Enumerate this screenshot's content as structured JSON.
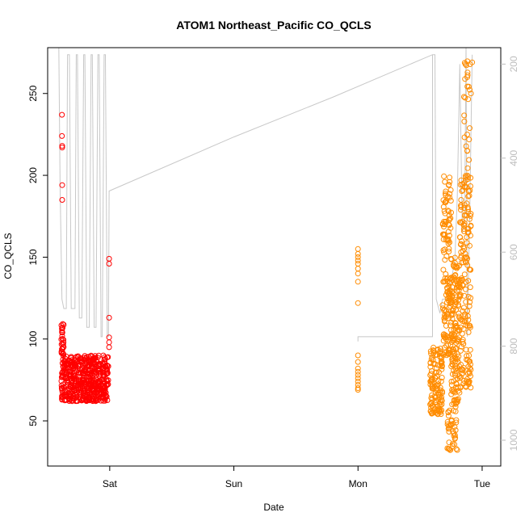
{
  "chart_data": {
    "type": "scatter",
    "title": "ATOM1 Northeast_Pacific CO_QCLS",
    "xlabel": "Date",
    "ylabel": "CO_QCLS",
    "x_ticks": [
      "Sat",
      "Sun",
      "Mon",
      "Tue"
    ],
    "x_tick_values": [
      0,
      1,
      2,
      3
    ],
    "xlim": [
      -0.5,
      3.15
    ],
    "ylim": [
      22.4,
      278
    ],
    "y_ticks": [
      50,
      100,
      150,
      200,
      250
    ],
    "y2_ticks": [
      200,
      400,
      600,
      800,
      1000
    ],
    "y2lim": [
      1055,
      165
    ],
    "y2_reversed": true,
    "colors": {
      "series1": "#ff0000",
      "series2": "#ff8c00",
      "pressure_line": "#c8c8c8",
      "axis": "#000000",
      "right_axis": "#bdbdbd"
    },
    "series": [
      {
        "color": "#ff0000",
        "clusters": [
          {
            "x0": -0.39,
            "x1": -0.01,
            "ylo": 62,
            "yhi": 90,
            "n": 520
          },
          {
            "x0": -0.39,
            "x1": -0.37,
            "ylo": 90,
            "yhi": 110,
            "n": 28
          }
        ],
        "points": [
          [
            -0.385,
            237
          ],
          [
            -0.385,
            224
          ],
          [
            -0.383,
            218
          ],
          [
            -0.383,
            217
          ],
          [
            -0.383,
            194
          ],
          [
            -0.383,
            185
          ],
          [
            -0.005,
            149
          ],
          [
            -0.005,
            146
          ],
          [
            -0.005,
            113
          ],
          [
            -0.005,
            101
          ],
          [
            -0.005,
            98
          ],
          [
            -0.005,
            95
          ]
        ]
      },
      {
        "color": "#ff8c00",
        "clusters": [
          {
            "x0": 2.58,
            "x1": 2.68,
            "ylo": 54,
            "yhi": 95,
            "n": 130
          },
          {
            "x0": 2.68,
            "x1": 2.75,
            "ylo": 90,
            "yhi": 200,
            "n": 140
          },
          {
            "x0": 2.75,
            "x1": 2.82,
            "ylo": 60,
            "yhi": 150,
            "n": 150
          },
          {
            "x0": 2.72,
            "x1": 2.8,
            "ylo": 30,
            "yhi": 60,
            "n": 40
          },
          {
            "x0": 2.82,
            "x1": 2.91,
            "ylo": 70,
            "yhi": 200,
            "n": 170
          },
          {
            "x0": 2.85,
            "x1": 2.91,
            "ylo": 200,
            "yhi": 270,
            "n": 25
          }
        ],
        "points": [
          [
            2.0,
            155
          ],
          [
            2.0,
            152
          ],
          [
            2.0,
            150
          ],
          [
            2.0,
            148
          ],
          [
            2.0,
            146
          ],
          [
            2.0,
            143
          ],
          [
            2.0,
            140
          ],
          [
            2.0,
            135
          ],
          [
            2.0,
            122
          ],
          [
            2.0,
            90
          ],
          [
            2.0,
            86
          ],
          [
            2.0,
            82
          ],
          [
            2.0,
            80
          ],
          [
            2.0,
            78
          ],
          [
            2.0,
            76
          ],
          [
            2.0,
            74
          ],
          [
            2.0,
            72
          ],
          [
            2.0,
            70
          ],
          [
            2.0,
            69
          ],
          [
            2.88,
            260
          ],
          [
            2.92,
            269
          ],
          [
            2.91,
            250
          ]
        ]
      }
    ],
    "pressure_line": [
      [
        -0.41,
        160
      ],
      [
        -0.4,
        460
      ],
      [
        -0.385,
        700
      ],
      [
        -0.37,
        720
      ],
      [
        -0.35,
        720
      ],
      [
        -0.34,
        180
      ],
      [
        -0.325,
        180
      ],
      [
        -0.31,
        720
      ],
      [
        -0.28,
        720
      ],
      [
        -0.27,
        180
      ],
      [
        -0.26,
        180
      ],
      [
        -0.245,
        740
      ],
      [
        -0.225,
        740
      ],
      [
        -0.21,
        180
      ],
      [
        -0.2,
        180
      ],
      [
        -0.185,
        760
      ],
      [
        -0.165,
        760
      ],
      [
        -0.15,
        180
      ],
      [
        -0.14,
        180
      ],
      [
        -0.125,
        760
      ],
      [
        -0.11,
        760
      ],
      [
        -0.095,
        180
      ],
      [
        -0.085,
        180
      ],
      [
        -0.07,
        780
      ],
      [
        -0.06,
        780
      ],
      [
        -0.045,
        180
      ],
      [
        -0.035,
        180
      ],
      [
        -0.02,
        780
      ],
      [
        -0.01,
        780
      ],
      [
        -0.005,
        470
      ],
      [
        1.0,
        355
      ],
      [
        1.8,
        270
      ],
      [
        2.6,
        180
      ],
      [
        2.62,
        180
      ],
      [
        2.63,
        700
      ],
      [
        2.66,
        730
      ],
      [
        2.68,
        700
      ],
      [
        2.72,
        700
      ],
      [
        2.75,
        660
      ],
      [
        2.78,
        620
      ],
      [
        2.8,
        480
      ],
      [
        2.82,
        200
      ],
      [
        2.84,
        560
      ],
      [
        2.86,
        520
      ],
      [
        2.87,
        160
      ],
      [
        2.88,
        780
      ],
      [
        2.9,
        520
      ],
      [
        2.92,
        180
      ]
    ],
    "pressure_line_b": [
      [
        2.0,
        790
      ],
      [
        2.0,
        780
      ],
      [
        2.6,
        780
      ],
      [
        2.6,
        180
      ]
    ]
  }
}
